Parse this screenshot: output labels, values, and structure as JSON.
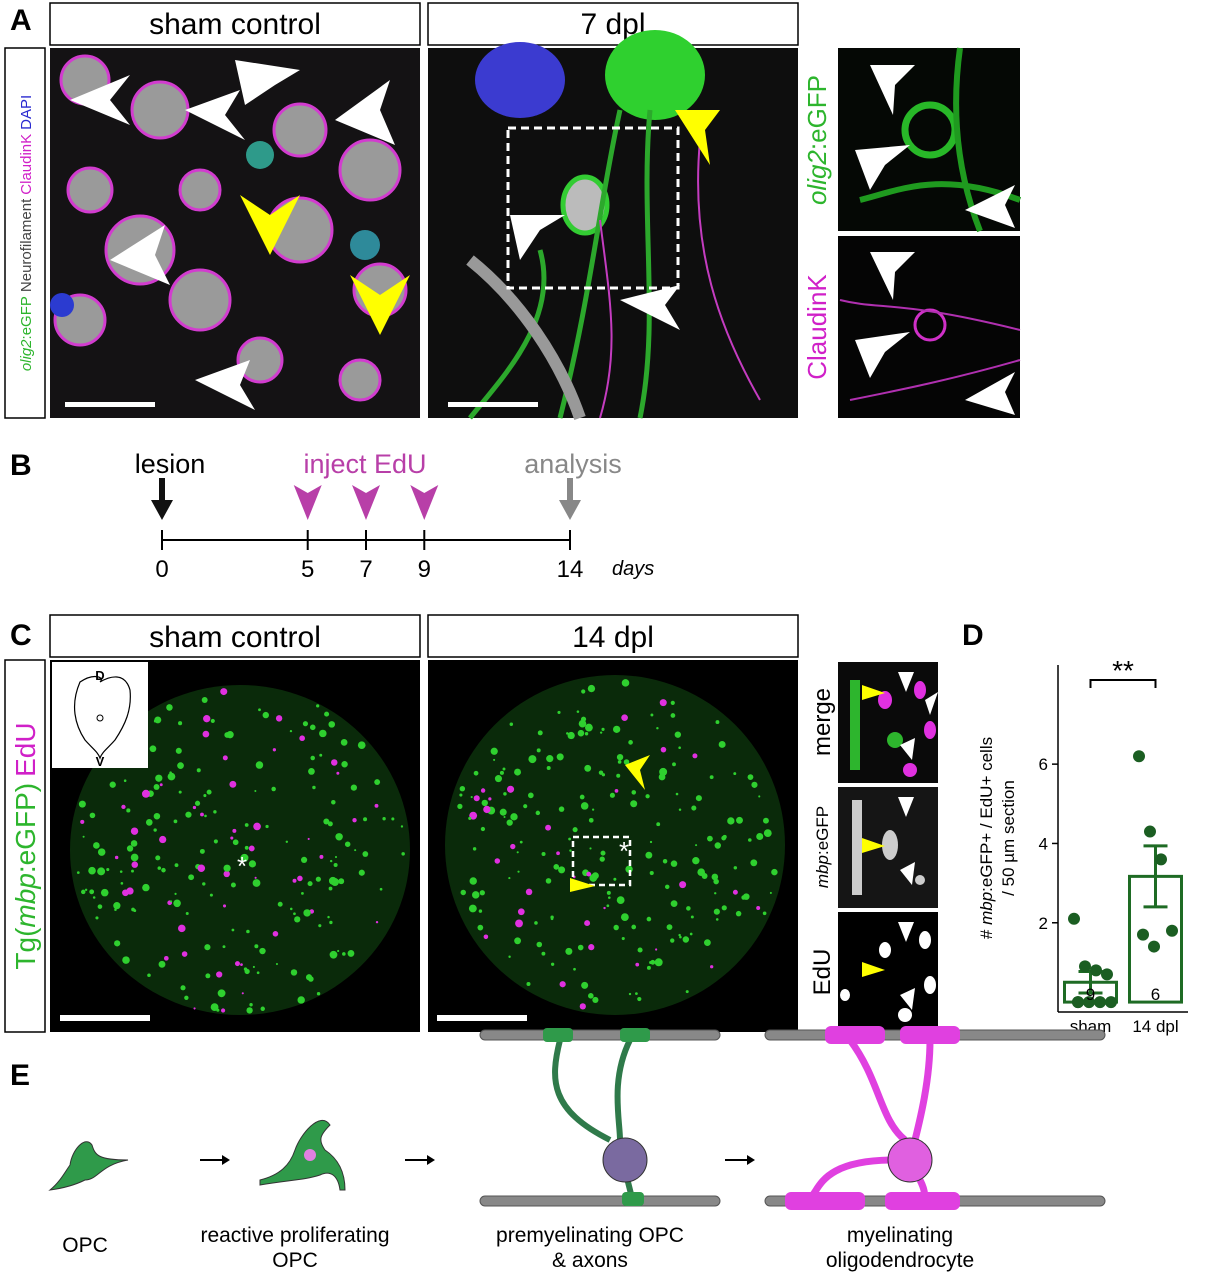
{
  "panel_a": {
    "label": "A",
    "left_title": "sham control",
    "right_title": "7 dpl",
    "gene": "olig2",
    "reporter": ":eGFP",
    "neuro": "Neurofilament",
    "claudin": "ClaudinK",
    "dapi": "DAPI"
  },
  "panel_b": {
    "label": "B",
    "lesion": "lesion",
    "inject": "inject EdU",
    "analysis": "analysis",
    "unit": "days",
    "lesion_day": 0,
    "edu_days": [
      5,
      7,
      9
    ],
    "analysis_day": 14,
    "ticks": [
      0,
      5,
      7,
      9,
      14
    ]
  },
  "panel_c": {
    "label": "C",
    "left_title": "sham control",
    "right_title": "14 dpl",
    "tg_open": "Tg(",
    "gene": "mbp",
    "tg_close": ":eGFP)",
    "edu": "EdU",
    "reporter": ":eGFP",
    "merge": "merge",
    "dorsal": "D",
    "ventral": "V"
  },
  "chart_data": {
    "type": "bar",
    "label": "D",
    "categories": [
      "sham",
      "14 dpl"
    ],
    "values": [
      0.5,
      3.17
    ],
    "errors": [
      0.27,
      0.77
    ],
    "n": [
      9,
      6
    ],
    "points": [
      [
        2.1,
        0.9,
        0.8,
        0.7,
        0,
        0,
        0,
        0,
        0
      ],
      [
        6.2,
        4.3,
        3.6,
        1.8,
        1.7,
        1.4
      ]
    ],
    "color": "#1e6b24",
    "point_color": "#1b5e22",
    "ylim": [
      -0.25,
      8.5
    ],
    "yticks": [
      2,
      4,
      6
    ],
    "ylabel_pre": "# ",
    "ylabel_gene": "mbp",
    "ylabel_post": ":eGFP+ / EdU+ cells",
    "ylabel_line2": "/ 50 µm section",
    "significance": "**"
  },
  "panel_e": {
    "label": "E",
    "stage1": "OPC",
    "stage2_line1": "reactive proliferating",
    "stage2_line2": "OPC",
    "stage3_line1": "premyelinating OPC",
    "stage3_line2": "& axons",
    "stage4_line1": "myelinating",
    "stage4_line2": "oligodendrocyte"
  }
}
